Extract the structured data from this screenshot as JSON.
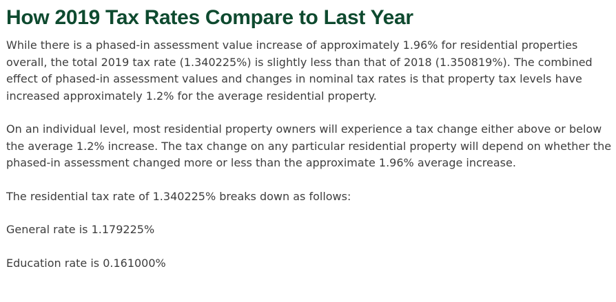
{
  "article": {
    "heading": "How 2019 Tax Rates Compare to Last Year",
    "paragraphs": [
      "While there is a phased-in assessment value increase of approximately 1.96% for residential properties overall, the total 2019 tax rate (1.340225%) is slightly less than that of 2018 (1.350819%). The combined effect of phased-in assessment values and changes in nominal tax rates is that property tax levels have increased approximately 1.2% for the average residential property.",
      "On an individual level, most residential property owners will experience a tax change either above or below the average 1.2% increase. The tax change on any particular residential property will depend on whether the phased-in assessment changed more or less than the approximate 1.96% average increase.",
      "The residential tax rate of 1.340225% breaks down as follows:",
      "General rate is 1.179225%",
      "Education rate is 0.161000%"
    ]
  }
}
